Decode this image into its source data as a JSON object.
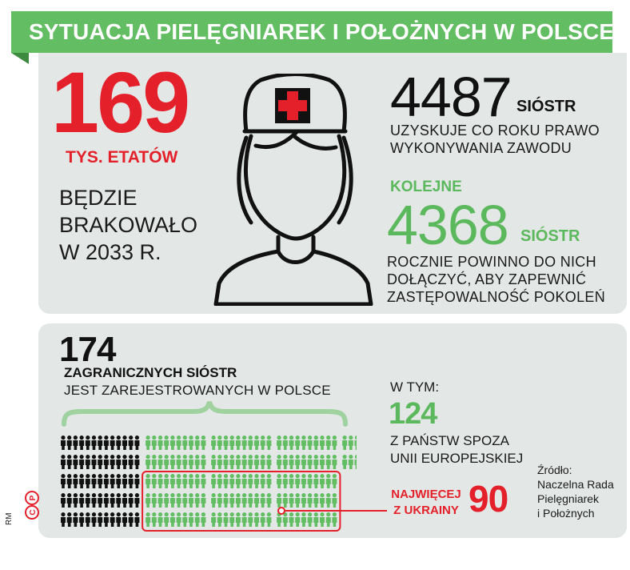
{
  "title": "SYTUACJA PIELĘGNIAREK I POŁOŻNYCH W POLSCE",
  "shortage": {
    "number": "169",
    "unit": "TYS. ETATÓW",
    "desc_lines": [
      "BĘDZIE",
      "BRAKOWAŁO",
      "W 2033 R."
    ]
  },
  "yearly": {
    "number": "4487",
    "unit": "SIÓSTR",
    "desc_lines": [
      "UZYSKUJE CO ROKU PRAWO",
      "WYKONYWANIA ZAWODU"
    ]
  },
  "needed": {
    "prefix": "KOLEJNE",
    "number": "4368",
    "unit": "SIÓSTR",
    "desc_lines": [
      "ROCZNIE POWINNO DO NICH",
      "DOŁĄCZYĆ, ABY ZAPEWNIĆ",
      "ZASTĘPOWALNOŚĆ POKOLEŃ"
    ]
  },
  "foreign": {
    "number": "174",
    "label": "ZAGRANICZNYCH SIÓSTR",
    "desc": "JEST ZAREJESTROWANYCH W POLSCE"
  },
  "non_eu": {
    "prefix": "W TYM:",
    "number": "124",
    "desc_lines": [
      "Z PAŃSTW SPOZA",
      "UNII EUROPEJSKIEJ"
    ]
  },
  "ukraine": {
    "label_lines": [
      "NAJWIĘCEJ",
      "Z UKRAINY"
    ],
    "number": "90"
  },
  "source_lines": [
    "Źródło:",
    "Naczelna Rada",
    "Pielęgniarek",
    "i Położnych"
  ],
  "credit": "RM",
  "figures": {
    "total": 174,
    "eu": 50,
    "non_eu": 124,
    "ukraine": 90
  },
  "colors": {
    "green": "#62bd63",
    "dark_green": "#3f8a41",
    "red": "#e4202a",
    "panel": "#e3e7e6",
    "text": "#1a1a1a"
  },
  "icons": [
    "nurse-icon",
    "red-cross-icon",
    "person-figure-icon",
    "copyright-cp-icon"
  ]
}
